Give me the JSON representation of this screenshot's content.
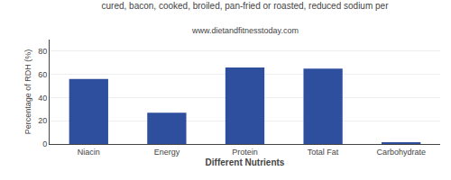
{
  "chart_data": {
    "type": "bar",
    "title": "cured, bacon, cooked, broiled, pan-fried or roasted, reduced sodium per",
    "subtitle": "www.dietandfitnesstoday.com",
    "xlabel": "Different Nutrients",
    "ylabel": "Percentage of RDH (%)",
    "categories": [
      "Niacin",
      "Energy",
      "Protein",
      "Total Fat",
      "Carbohydrate"
    ],
    "values": [
      56,
      27,
      66,
      65,
      1
    ],
    "color": "#2e4f9e",
    "ylim": [
      0,
      90
    ],
    "yticks": [
      0,
      20,
      40,
      60,
      80
    ],
    "grid": true
  }
}
